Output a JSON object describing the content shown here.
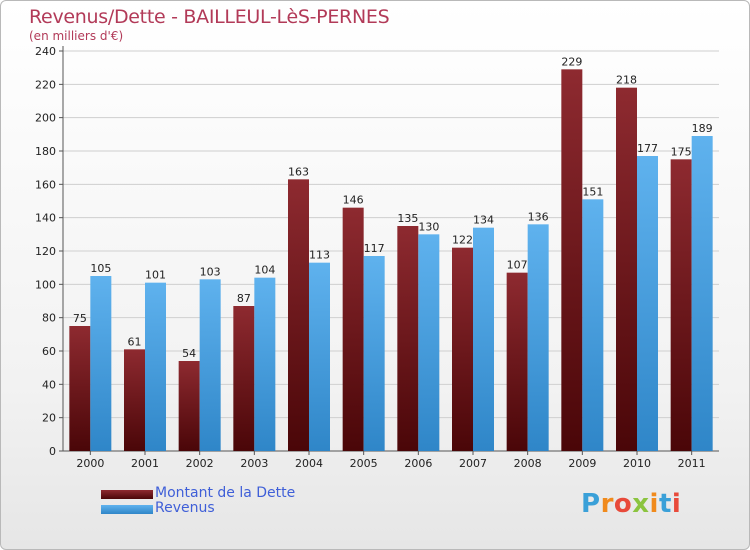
{
  "header": {
    "title": "Revenus/Dette - BAILLEUL-LèS-PERNES",
    "subtitle": "(en milliers d'€)"
  },
  "logo": {
    "text": "Proxiti",
    "letter_colors": [
      "#3aa0d8",
      "#f08a1c",
      "#e84a3a",
      "#8bc43f",
      "#f08a1c",
      "#3aa0d8",
      "#e84a3a"
    ]
  },
  "colors": {
    "dette": "#7a1c22",
    "revenus": "#4aa2e2",
    "grid": "#cfcfcf",
    "axis_text": "#222222"
  },
  "chart_data": {
    "type": "bar",
    "categories": [
      "2000",
      "2001",
      "2002",
      "2003",
      "2004",
      "2005",
      "2006",
      "2007",
      "2008",
      "2009",
      "2010",
      "2011"
    ],
    "series": [
      {
        "name": "Montant de la Dette",
        "values": [
          75,
          61,
          54,
          87,
          163,
          146,
          135,
          122,
          107,
          229,
          218,
          175
        ]
      },
      {
        "name": "Revenus",
        "values": [
          105,
          101,
          103,
          104,
          113,
          117,
          130,
          134,
          136,
          151,
          177,
          189
        ]
      }
    ],
    "yticks": [
      0,
      20,
      40,
      60,
      80,
      100,
      120,
      140,
      160,
      180,
      200,
      220,
      240
    ],
    "ylim": [
      0,
      240
    ],
    "grid": true,
    "legend": "bottom-left"
  }
}
